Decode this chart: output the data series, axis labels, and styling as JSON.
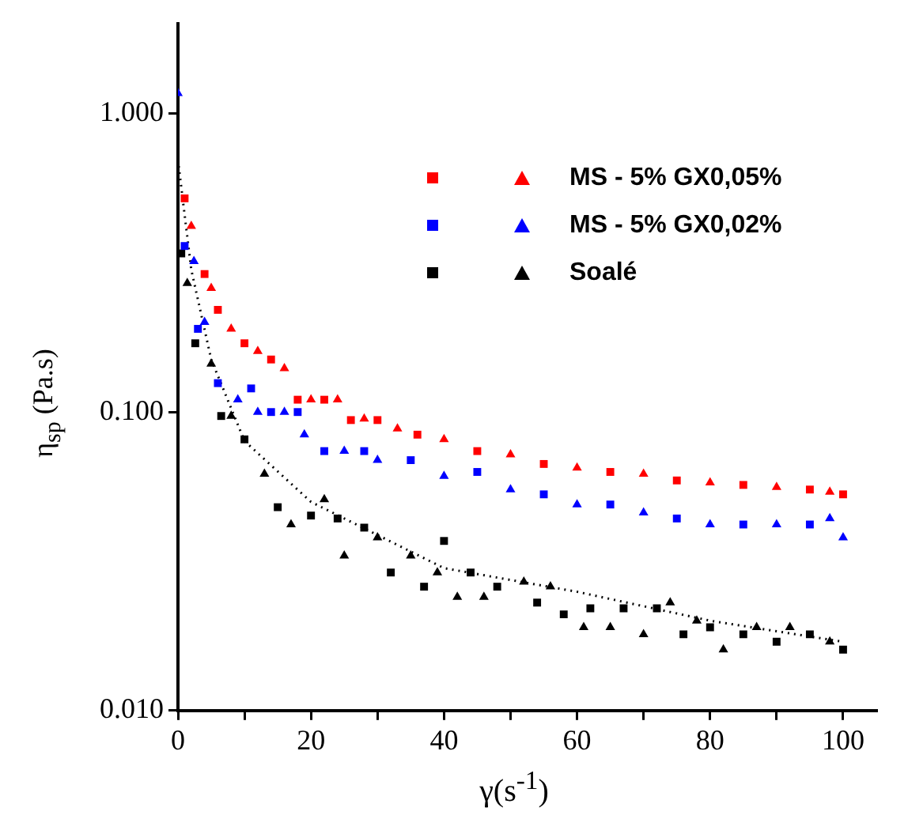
{
  "chart_data": {
    "type": "scatter",
    "xlabel": "γ(s$^{-1}$)",
    "ylabel": "η$_{sp}$ (Pa.s)",
    "xlim": [
      0,
      105
    ],
    "xticks": [
      0,
      {
        "value": 10,
        "label": null
      },
      20,
      {
        "value": 30,
        "label": null
      },
      40,
      {
        "value": 50,
        "label": null
      },
      60,
      {
        "value": 70,
        "label": null
      },
      80,
      {
        "value": 90,
        "label": null
      },
      100
    ],
    "ylim": [
      0.01,
      2
    ],
    "yticks": [
      {
        "value": 0.01,
        "label": "0.010"
      },
      {
        "value": 0.1,
        "label": "0.100"
      },
      {
        "value": 1,
        "label": "1.000"
      }
    ],
    "log": "y",
    "grid": false,
    "legend": "top right",
    "series": [
      {
        "name": "MS - 5% GX0,05%",
        "color": "#ff0000",
        "marker": "square",
        "x": [
          1,
          4,
          6,
          10,
          14,
          18,
          22,
          26,
          30,
          36,
          45,
          55,
          65,
          75,
          85,
          95,
          100
        ],
        "values": [
          0.52,
          0.29,
          0.22,
          0.17,
          0.15,
          0.11,
          0.11,
          0.094,
          0.094,
          0.084,
          0.074,
          0.067,
          0.063,
          0.059,
          0.057,
          0.055,
          0.053
        ]
      },
      {
        "color": "#ff0000",
        "marker": "triangle",
        "x": [
          2,
          5,
          8,
          12,
          16,
          20,
          24,
          28,
          33,
          40,
          50,
          60,
          70,
          80,
          90,
          98
        ],
        "values": [
          0.42,
          0.26,
          0.19,
          0.16,
          0.14,
          0.11,
          0.11,
          0.095,
          0.088,
          0.081,
          0.072,
          0.065,
          0.062,
          0.058,
          0.056,
          0.054
        ]
      },
      {
        "name": "MS - 5% GX0,02%",
        "color": "#0000ff",
        "marker": "square",
        "x": [
          1,
          3,
          6,
          11,
          14,
          18,
          22,
          28,
          35,
          45,
          55,
          65,
          75,
          85,
          95
        ],
        "values": [
          0.36,
          0.19,
          0.125,
          0.12,
          0.1,
          0.1,
          0.074,
          0.074,
          0.069,
          0.063,
          0.053,
          0.049,
          0.044,
          0.042,
          0.042
        ]
      },
      {
        "color": "#0000ff",
        "marker": "triangle",
        "x": [
          0,
          2.4,
          4,
          9,
          12,
          16,
          19,
          25,
          30,
          40,
          50,
          60,
          70,
          80,
          90,
          98,
          100
        ],
        "values": [
          1.17,
          0.32,
          0.2,
          0.11,
          0.1,
          0.1,
          0.084,
          0.074,
          0.069,
          0.061,
          0.055,
          0.049,
          0.046,
          0.042,
          0.042,
          0.044,
          0.038
        ]
      },
      {
        "name": "Soalé",
        "color": "#000000",
        "marker": "square",
        "x": [
          0.5,
          2.6,
          6.5,
          10,
          15,
          20,
          24,
          28,
          32,
          37,
          40,
          44,
          48,
          54,
          58,
          62,
          67,
          72,
          76,
          80,
          85,
          90,
          95,
          100
        ],
        "values": [
          0.34,
          0.17,
          0.097,
          0.081,
          0.048,
          0.045,
          0.044,
          0.041,
          0.029,
          0.026,
          0.037,
          0.029,
          0.026,
          0.023,
          0.021,
          0.022,
          0.022,
          0.022,
          0.018,
          0.019,
          0.018,
          0.017,
          0.018,
          0.016
        ]
      },
      {
        "color": "#000000",
        "marker": "triangle",
        "x": [
          1.4,
          5,
          8,
          13,
          17,
          22,
          25,
          30,
          35,
          39,
          42,
          46,
          52,
          56,
          61,
          65,
          70,
          74,
          78,
          82,
          87,
          92,
          98
        ],
        "values": [
          0.27,
          0.145,
          0.097,
          0.062,
          0.042,
          0.051,
          0.033,
          0.038,
          0.033,
          0.029,
          0.024,
          0.024,
          0.027,
          0.026,
          0.019,
          0.019,
          0.018,
          0.023,
          0.02,
          0.016,
          0.019,
          0.019,
          0.017
        ]
      },
      {
        "type": "line",
        "color": "#000000",
        "marker": "none",
        "line_style": "dotted",
        "x": [
          0,
          2,
          5,
          10,
          20,
          40,
          60,
          80,
          100
        ],
        "values": [
          0.7,
          0.3,
          0.15,
          0.08,
          0.05,
          0.03,
          0.025,
          0.02,
          0.017
        ]
      }
    ]
  }
}
